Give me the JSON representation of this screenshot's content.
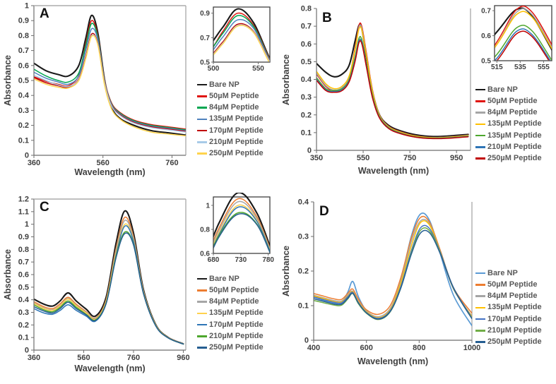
{
  "figure": {
    "background": "#ffffff",
    "description": "UV-Vis absorbance spectra of nanoparticles with increasing peptide concentration, four panels A-D each with legend and zoom inset"
  },
  "chart_data": [
    {
      "type": "line",
      "panel": "A",
      "xlabel": "Wavelength (nm)",
      "ylabel": "Absorbance",
      "xlim": [
        360,
        800
      ],
      "ylim": [
        0,
        1
      ],
      "xticks": [
        360,
        560,
        760
      ],
      "yticks": [
        0,
        0.1,
        0.2,
        0.3,
        0.4,
        0.5,
        0.6,
        0.7,
        0.8,
        0.9,
        1
      ],
      "grid": false,
      "legend_position": "right",
      "x": [
        360,
        395,
        430,
        460,
        490,
        510,
        527,
        545,
        565,
        585,
        610,
        650,
        700,
        750,
        800
      ],
      "series": [
        {
          "name": "Bare NP",
          "color": "#1a1a1a",
          "y": [
            0.615,
            0.565,
            0.54,
            0.53,
            0.6,
            0.78,
            0.935,
            0.82,
            0.5,
            0.32,
            0.245,
            0.2,
            0.165,
            0.15,
            0.135
          ]
        },
        {
          "name": "50µM Peptide",
          "color": "#e0150f",
          "y": [
            0.525,
            0.495,
            0.475,
            0.465,
            0.535,
            0.745,
            0.9,
            0.8,
            0.5,
            0.35,
            0.285,
            0.235,
            0.205,
            0.19,
            0.175
          ]
        },
        {
          "name": "84µM Peptide",
          "color": "#00a651",
          "y": [
            0.575,
            0.53,
            0.5,
            0.49,
            0.55,
            0.73,
            0.88,
            0.79,
            0.495,
            0.345,
            0.28,
            0.23,
            0.2,
            0.185,
            0.17
          ]
        },
        {
          "name": "135µM Peptide",
          "color": "#4f81bd",
          "y": [
            0.555,
            0.515,
            0.49,
            0.475,
            0.53,
            0.7,
            0.845,
            0.775,
            0.49,
            0.34,
            0.275,
            0.225,
            0.195,
            0.18,
            0.165
          ]
        },
        {
          "name": "170µM Peptide",
          "color": "#c00000",
          "y": [
            0.52,
            0.485,
            0.465,
            0.455,
            0.51,
            0.66,
            0.81,
            0.75,
            0.485,
            0.335,
            0.27,
            0.22,
            0.19,
            0.175,
            0.16
          ]
        },
        {
          "name": "210µM Peptide",
          "color": "#a8cbe8",
          "y": [
            0.535,
            0.5,
            0.47,
            0.46,
            0.505,
            0.65,
            0.8,
            0.745,
            0.48,
            0.33,
            0.265,
            0.215,
            0.185,
            0.17,
            0.155
          ]
        },
        {
          "name": "250µM Peptide",
          "color": "#ffd34d",
          "y": [
            0.51,
            0.475,
            0.455,
            0.45,
            0.5,
            0.645,
            0.795,
            0.74,
            0.465,
            0.31,
            0.24,
            0.19,
            0.155,
            0.142,
            0.13
          ]
        }
      ],
      "inset": {
        "xlim": [
          500,
          563
        ],
        "ylim": [
          0.5,
          0.95
        ],
        "xticks": [
          500,
          550
        ],
        "yticks": [
          0.5,
          0.7,
          0.9
        ]
      }
    },
    {
      "type": "line",
      "panel": "B",
      "xlabel": "Wavelength (nm)",
      "ylabel": "Absorbance",
      "xlim": [
        350,
        1010
      ],
      "ylim": [
        0,
        0.8
      ],
      "xticks": [
        350,
        550,
        750,
        950
      ],
      "yticks": [
        0,
        0.1,
        0.2,
        0.3,
        0.4,
        0.5,
        0.6,
        0.7,
        0.8
      ],
      "grid": false,
      "legend_position": "right",
      "x": [
        350,
        390,
        425,
        460,
        490,
        515,
        532,
        545,
        565,
        590,
        620,
        660,
        710,
        775,
        850,
        925,
        1000
      ],
      "series": [
        {
          "name": "Bare NP",
          "color": "#1a1a1a",
          "y": [
            0.49,
            0.44,
            0.415,
            0.43,
            0.48,
            0.615,
            0.705,
            0.68,
            0.52,
            0.33,
            0.2,
            0.14,
            0.11,
            0.088,
            0.078,
            0.082,
            0.09
          ]
        },
        {
          "name": "50µM Peptide",
          "color": "#e0150f",
          "y": [
            0.43,
            0.36,
            0.335,
            0.35,
            0.41,
            0.575,
            0.705,
            0.695,
            0.54,
            0.34,
            0.2,
            0.135,
            0.105,
            0.082,
            0.073,
            0.077,
            0.086
          ]
        },
        {
          "name": "84µM Peptide",
          "color": "#a6a6a6",
          "y": [
            0.435,
            0.365,
            0.34,
            0.355,
            0.41,
            0.565,
            0.695,
            0.685,
            0.53,
            0.335,
            0.198,
            0.133,
            0.103,
            0.081,
            0.072,
            0.076,
            0.085
          ]
        },
        {
          "name": "135µM Peptide",
          "color": "#ffc000",
          "y": [
            0.445,
            0.375,
            0.348,
            0.362,
            0.42,
            0.565,
            0.685,
            0.675,
            0.525,
            0.33,
            0.196,
            0.131,
            0.102,
            0.08,
            0.071,
            0.075,
            0.083
          ]
        },
        {
          "name": "135µM Peptide",
          "color": "#4ea72e",
          "y": [
            0.41,
            0.348,
            0.338,
            0.348,
            0.4,
            0.525,
            0.632,
            0.62,
            0.48,
            0.31,
            0.19,
            0.127,
            0.098,
            0.077,
            0.069,
            0.072,
            0.08
          ]
        },
        {
          "name": "210µM Peptide",
          "color": "#2e75b6",
          "y": [
            0.4,
            0.342,
            0.332,
            0.342,
            0.392,
            0.51,
            0.618,
            0.605,
            0.47,
            0.3,
            0.185,
            0.124,
            0.096,
            0.075,
            0.067,
            0.07,
            0.078
          ]
        },
        {
          "name": "250µM Peptide",
          "color": "#c00000",
          "y": [
            0.395,
            0.337,
            0.327,
            0.337,
            0.386,
            0.5,
            0.608,
            0.597,
            0.462,
            0.295,
            0.182,
            0.122,
            0.094,
            0.074,
            0.066,
            0.069,
            0.077
          ]
        }
      ],
      "inset": {
        "xlim": [
          513,
          562
        ],
        "ylim": [
          0.5,
          0.72
        ],
        "xticks": [
          515,
          535,
          555
        ],
        "yticks": [
          0.5,
          0.6,
          0.7
        ]
      }
    },
    {
      "type": "line",
      "panel": "C",
      "xlabel": "Wavelength (nm)",
      "ylabel": "Absorbance",
      "xlim": [
        360,
        970
      ],
      "ylim": [
        0,
        1.2
      ],
      "xticks": [
        360,
        560,
        760,
        960
      ],
      "yticks": [
        0,
        0.1,
        0.2,
        0.3,
        0.4,
        0.5,
        0.6,
        0.7,
        0.8,
        0.9,
        1,
        1.1,
        1.2
      ],
      "grid": false,
      "legend_position": "right",
      "x": [
        360,
        400,
        435,
        465,
        497,
        530,
        570,
        607,
        650,
        690,
        725,
        760,
        800,
        850,
        900,
        960
      ],
      "series": [
        {
          "name": "Bare NP",
          "color": "#1a1a1a",
          "y": [
            0.405,
            0.365,
            0.35,
            0.39,
            0.455,
            0.39,
            0.325,
            0.27,
            0.42,
            0.85,
            1.105,
            0.93,
            0.48,
            0.2,
            0.1,
            0.05
          ]
        },
        {
          "name": "50µM Peptide",
          "color": "#ed7d31",
          "y": [
            0.385,
            0.345,
            0.33,
            0.368,
            0.42,
            0.365,
            0.305,
            0.255,
            0.4,
            0.81,
            1.055,
            0.9,
            0.47,
            0.198,
            0.099,
            0.05
          ]
        },
        {
          "name": "84µM Peptide",
          "color": "#a6a6a6",
          "y": [
            0.375,
            0.335,
            0.32,
            0.356,
            0.41,
            0.355,
            0.3,
            0.25,
            0.39,
            0.79,
            1.03,
            0.885,
            0.465,
            0.196,
            0.098,
            0.05
          ]
        },
        {
          "name": "135µM Peptide",
          "color": "#ffd24d",
          "y": [
            0.37,
            0.33,
            0.315,
            0.35,
            0.405,
            0.35,
            0.295,
            0.245,
            0.385,
            0.77,
            1.0,
            0.87,
            0.46,
            0.195,
            0.098,
            0.049
          ]
        },
        {
          "name": "170µM Peptide",
          "color": "#2e75b6",
          "y": [
            0.33,
            0.295,
            0.285,
            0.315,
            0.36,
            0.315,
            0.27,
            0.23,
            0.37,
            0.755,
            0.985,
            0.862,
            0.455,
            0.192,
            0.097,
            0.048
          ]
        },
        {
          "name": "210µM Peptide",
          "color": "#4ea72e",
          "y": [
            0.36,
            0.32,
            0.305,
            0.34,
            0.39,
            0.34,
            0.285,
            0.24,
            0.375,
            0.745,
            0.938,
            0.84,
            0.45,
            0.191,
            0.096,
            0.048
          ]
        },
        {
          "name": "250µM Peptide",
          "color": "#255e91",
          "y": [
            0.345,
            0.31,
            0.295,
            0.33,
            0.38,
            0.33,
            0.28,
            0.235,
            0.37,
            0.735,
            0.926,
            0.835,
            0.448,
            0.19,
            0.096,
            0.048
          ]
        }
      ],
      "inset": {
        "xlim": [
          680,
          783
        ],
        "ylim": [
          0.6,
          1.07
        ],
        "xticks": [
          680,
          730,
          780
        ],
        "yticks": [
          0.6,
          0.8,
          1
        ]
      }
    },
    {
      "type": "line",
      "panel": "D",
      "xlabel": "Wavelength (nm)",
      "ylabel": "Absorbance",
      "xlim": [
        400,
        1000
      ],
      "ylim": [
        0,
        0.4
      ],
      "xticks": [
        400,
        600,
        800,
        1000
      ],
      "yticks": [
        0,
        0.1,
        0.2,
        0.3,
        0.4
      ],
      "grid": false,
      "legend_position": "right",
      "x": [
        400,
        440,
        475,
        505,
        530,
        548,
        570,
        600,
        645,
        690,
        730,
        770,
        805,
        840,
        880,
        930,
        1000
      ],
      "series": [
        {
          "name": "Bare NP",
          "color": "#5b9bd5",
          "y": [
            0.125,
            0.115,
            0.107,
            0.107,
            0.14,
            0.17,
            0.125,
            0.085,
            0.062,
            0.085,
            0.17,
            0.3,
            0.365,
            0.345,
            0.25,
            0.13,
            0.042
          ]
        },
        {
          "name": "50µM Peptide",
          "color": "#ed7d31",
          "y": [
            0.135,
            0.127,
            0.12,
            0.118,
            0.136,
            0.148,
            0.118,
            0.088,
            0.075,
            0.1,
            0.18,
            0.295,
            0.355,
            0.34,
            0.26,
            0.152,
            0.078
          ]
        },
        {
          "name": "84µM Peptide",
          "color": "#a5a5a5",
          "y": [
            0.13,
            0.122,
            0.115,
            0.113,
            0.131,
            0.142,
            0.112,
            0.084,
            0.068,
            0.092,
            0.17,
            0.285,
            0.345,
            0.335,
            0.255,
            0.148,
            0.07
          ]
        },
        {
          "name": "135µM Peptide",
          "color": "#ffc000",
          "y": [
            0.128,
            0.12,
            0.112,
            0.11,
            0.128,
            0.14,
            0.11,
            0.082,
            0.065,
            0.088,
            0.165,
            0.272,
            0.34,
            0.332,
            0.256,
            0.15,
            0.068
          ]
        },
        {
          "name": "170µM Peptide",
          "color": "#4472c4",
          "y": [
            0.125,
            0.117,
            0.11,
            0.108,
            0.126,
            0.138,
            0.108,
            0.08,
            0.063,
            0.085,
            0.155,
            0.258,
            0.325,
            0.322,
            0.255,
            0.152,
            0.065
          ]
        },
        {
          "name": "210µM Peptide",
          "color": "#70ad47",
          "y": [
            0.115,
            0.108,
            0.102,
            0.101,
            0.12,
            0.135,
            0.105,
            0.078,
            0.06,
            0.082,
            0.15,
            0.252,
            0.318,
            0.316,
            0.252,
            0.15,
            0.063
          ]
        },
        {
          "name": "250µM Peptide",
          "color": "#255e91",
          "y": [
            0.12,
            0.112,
            0.105,
            0.104,
            0.122,
            0.136,
            0.107,
            0.079,
            0.061,
            0.083,
            0.15,
            0.248,
            0.31,
            0.31,
            0.25,
            0.151,
            0.062
          ]
        }
      ],
      "inset": null
    }
  ]
}
